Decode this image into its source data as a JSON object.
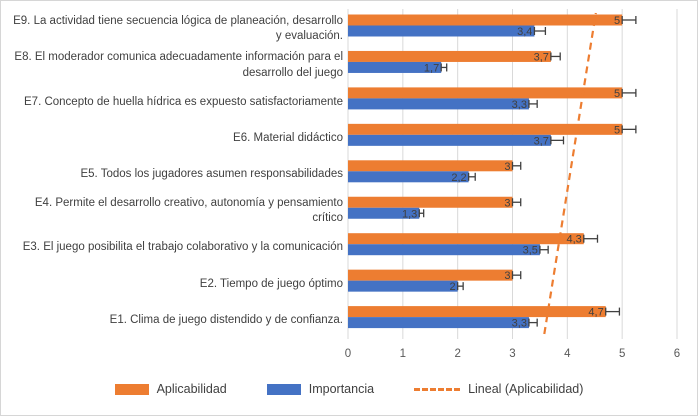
{
  "chart_data": {
    "type": "bar",
    "orientation": "horizontal",
    "categories": [
      "E9. La actividad tiene secuencia lógica de planeación, desarrollo y evaluación.",
      "E8. El moderador comunica adecuadamente información para el desarrollo del juego",
      "E7. Concepto de huella hídrica es expuesto satisfactoriamente",
      "E6. Material didáctico",
      "E5. Todos los jugadores asumen responsabilidades",
      "E4. Permite el desarrollo creativo, autonomía y pensamiento crítico",
      "E3. El juego posibilita el trabajo colaborativo y la comunicación",
      "E2. Tiempo de juego óptimo",
      "E1. Clima de juego distendido y de confianza."
    ],
    "series": [
      {
        "name": "Aplicabilidad",
        "color": "#ED7D31",
        "values": [
          5,
          3.7,
          5,
          5,
          3,
          3,
          4.3,
          3,
          4.7
        ],
        "labels": [
          "5",
          "3,7",
          "5",
          "5",
          "3",
          "3",
          "4,3",
          "3",
          "4,7"
        ],
        "errors": [
          0.25,
          0.17,
          0.25,
          0.25,
          0.15,
          0.15,
          0.25,
          0.15,
          0.25
        ]
      },
      {
        "name": "Importancia",
        "color": "#4472C4",
        "values": [
          3.4,
          1.7,
          3.3,
          3.7,
          2.2,
          1.3,
          3.5,
          2,
          3.3
        ],
        "labels": [
          "3,4",
          "1,7",
          "3,3",
          "3,7",
          "2,2",
          "1,3",
          "3,5",
          "2",
          "3,3"
        ],
        "errors": [
          0.2,
          0.1,
          0.15,
          0.23,
          0.12,
          0.08,
          0.15,
          0.1,
          0.15
        ]
      }
    ],
    "trendline": {
      "name": "Lineal (Aplicabilidad)",
      "color": "#ED7D31",
      "bottom_value": 3.58,
      "top_value": 4.52
    },
    "x_ticks": [
      "0",
      "1",
      "2",
      "3",
      "4",
      "5",
      "6"
    ],
    "xlim": [
      0,
      6
    ],
    "grid": true,
    "legend_position": "bottom",
    "gridline_color": "#D9D9D9",
    "error_bar_color": "#404040",
    "data_label_color": "#404040",
    "tick_label_color": "#595959"
  },
  "legend": {
    "items": [
      {
        "label": "Aplicabilidad",
        "color": "#ED7D31",
        "type": "bar"
      },
      {
        "label": "Importancia",
        "color": "#4472C4",
        "type": "bar"
      },
      {
        "label": "Lineal (Aplicabilidad)",
        "color": "#ED7D31",
        "type": "dashed-line"
      }
    ]
  }
}
